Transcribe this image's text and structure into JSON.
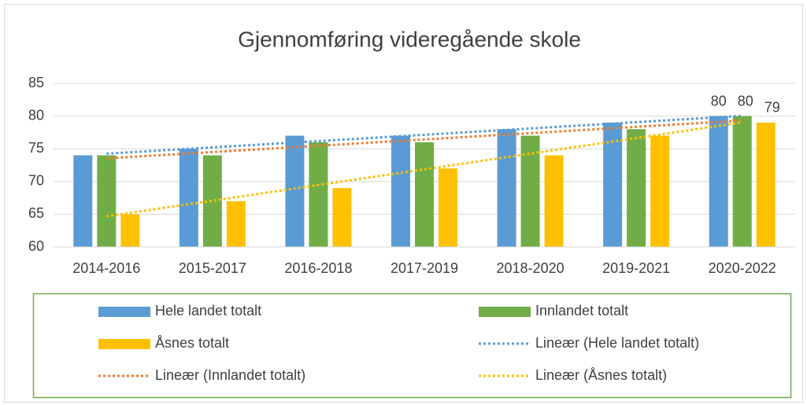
{
  "chart_data": {
    "type": "bar",
    "title": "Gjennomføring videregående skole",
    "categories": [
      "2014-2016",
      "2015-2017",
      "2016-2018",
      "2017-2019",
      "2018-2020",
      "2019-2021",
      "2020-2022"
    ],
    "series": [
      {
        "name": "Hele landet totalt",
        "color": "#5b9bd5",
        "values": [
          74,
          75,
          77,
          77,
          78,
          79,
          80
        ],
        "value_labels": [
          null,
          null,
          null,
          null,
          null,
          null,
          "80"
        ]
      },
      {
        "name": "Innlandet totalt",
        "color": "#70ad47",
        "values": [
          74,
          74,
          76,
          76,
          77,
          78,
          80
        ],
        "value_labels": [
          null,
          null,
          null,
          null,
          null,
          null,
          "80"
        ]
      },
      {
        "name": "Åsnes totalt",
        "color": "#ffc000",
        "values": [
          65,
          67,
          69,
          72,
          74,
          77,
          79
        ],
        "value_labels": [
          null,
          null,
          null,
          null,
          null,
          null,
          "79"
        ]
      }
    ],
    "trendlines": [
      {
        "name": "Lineær (Hele landet totalt)",
        "color": "#5b9bd5"
      },
      {
        "name": "Lineær (Innlandet totalt)",
        "color": "#ed7d31"
      },
      {
        "name": "Lineær (Åsnes totalt)",
        "color": "#ffc000"
      }
    ],
    "ylim": [
      60,
      85
    ],
    "yticks": [
      60,
      65,
      70,
      75,
      80,
      85
    ],
    "grid": true
  }
}
